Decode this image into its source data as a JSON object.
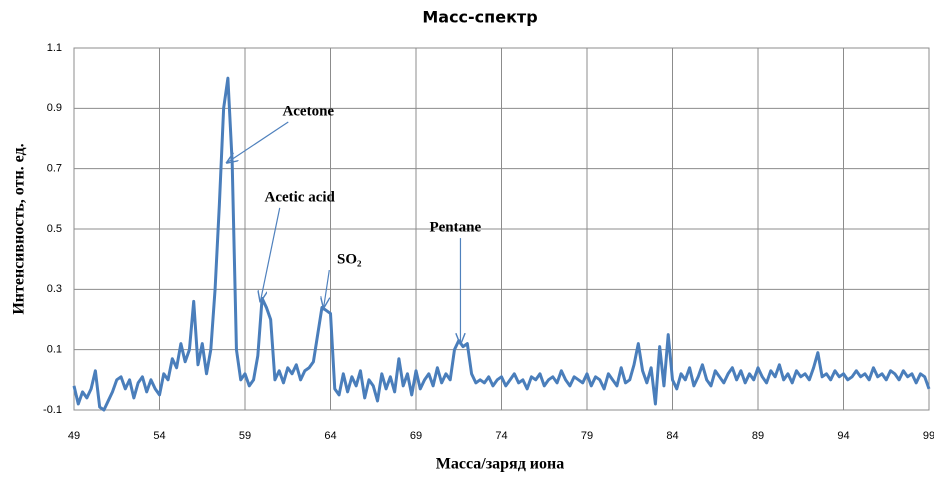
{
  "chart_data": {
    "type": "line",
    "title": "Масс-спектр",
    "xlabel": "Масса/заряд иона",
    "ylabel": "Интенсивность, отн. ед.",
    "xlim": [
      49,
      99
    ],
    "ylim": [
      -0.1,
      1.1
    ],
    "xticks": [
      49,
      54,
      59,
      64,
      69,
      74,
      79,
      84,
      89,
      94,
      99
    ],
    "yticks": [
      -0.1,
      0.1,
      0.3,
      0.5,
      0.7,
      0.9,
      1.1
    ],
    "grid": true,
    "x": [
      49,
      49.25,
      49.5,
      49.75,
      50,
      50.25,
      50.5,
      50.75,
      51,
      51.25,
      51.5,
      51.75,
      52,
      52.25,
      52.5,
      52.75,
      53,
      53.25,
      53.5,
      53.75,
      54,
      54.25,
      54.5,
      54.75,
      55,
      55.25,
      55.5,
      55.75,
      56,
      56.25,
      56.5,
      56.75,
      57,
      57.25,
      57.5,
      57.75,
      58,
      58.25,
      58.5,
      58.75,
      59,
      59.25,
      59.5,
      59.75,
      60,
      60.25,
      60.5,
      60.75,
      61,
      61.25,
      61.5,
      61.75,
      62,
      62.25,
      62.5,
      62.75,
      63,
      63.25,
      63.5,
      63.75,
      64,
      64.25,
      64.5,
      64.75,
      65,
      65.25,
      65.5,
      65.75,
      66,
      66.25,
      66.5,
      66.75,
      67,
      67.25,
      67.5,
      67.75,
      68,
      68.25,
      68.5,
      68.75,
      69,
      69.25,
      69.5,
      69.75,
      70,
      70.25,
      70.5,
      70.75,
      71,
      71.25,
      71.5,
      71.75,
      72,
      72.25,
      72.5,
      72.75,
      73,
      73.25,
      73.5,
      73.75,
      74,
      74.25,
      74.5,
      74.75,
      75,
      75.25,
      75.5,
      75.75,
      76,
      76.25,
      76.5,
      76.75,
      77,
      77.25,
      77.5,
      77.75,
      78,
      78.25,
      78.5,
      78.75,
      79,
      79.25,
      79.5,
      79.75,
      80,
      80.25,
      80.5,
      80.75,
      81,
      81.25,
      81.5,
      81.75,
      82,
      82.25,
      82.5,
      82.75,
      83,
      83.25,
      83.5,
      83.75,
      84,
      84.25,
      84.5,
      84.75,
      85,
      85.25,
      85.5,
      85.75,
      86,
      86.25,
      86.5,
      86.75,
      87,
      87.25,
      87.5,
      87.75,
      88,
      88.25,
      88.5,
      88.75,
      89,
      89.25,
      89.5,
      89.75,
      90,
      90.25,
      90.5,
      90.75,
      91,
      91.25,
      91.5,
      91.75,
      92,
      92.25,
      92.5,
      92.75,
      93,
      93.25,
      93.5,
      93.75,
      94,
      94.25,
      94.5,
      94.75,
      95,
      95.25,
      95.5,
      95.75,
      96,
      96.25,
      96.5,
      96.75,
      97,
      97.25,
      97.5,
      97.75,
      98,
      98.25,
      98.5,
      98.75,
      99
    ],
    "series": [
      {
        "name": "spectrum",
        "color": "#4a7ebb",
        "values": [
          -0.02,
          -0.08,
          -0.04,
          -0.06,
          -0.03,
          0.03,
          -0.09,
          -0.1,
          -0.07,
          -0.04,
          0,
          0.01,
          -0.03,
          0,
          -0.06,
          -0.01,
          0.01,
          -0.04,
          0,
          -0.03,
          -0.05,
          0.02,
          0,
          0.07,
          0.04,
          0.12,
          0.06,
          0.1,
          0.26,
          0.05,
          0.12,
          0.02,
          0.1,
          0.3,
          0.58,
          0.9,
          1.0,
          0.72,
          0.1,
          0,
          0.02,
          -0.02,
          0,
          0.08,
          0.27,
          0.24,
          0.2,
          0,
          0.03,
          -0.01,
          0.04,
          0.02,
          0.05,
          0,
          0.03,
          0.04,
          0.06,
          0.15,
          0.24,
          0.23,
          0.22,
          -0.03,
          -0.05,
          0.02,
          -0.04,
          0.01,
          -0.02,
          0.03,
          -0.06,
          0,
          -0.02,
          -0.07,
          0.02,
          -0.03,
          0.01,
          -0.04,
          0.07,
          -0.02,
          0.02,
          -0.05,
          0.03,
          -0.03,
          0,
          0.02,
          -0.02,
          0.04,
          -0.01,
          0.02,
          0,
          0.1,
          0.13,
          0.11,
          0.12,
          0.02,
          -0.01,
          0,
          -0.01,
          0.01,
          -0.02,
          0,
          0.01,
          -0.02,
          0,
          0.02,
          -0.01,
          0,
          -0.03,
          0.01,
          0,
          0.02,
          -0.02,
          0,
          0.01,
          -0.01,
          0.03,
          0,
          -0.02,
          0.01,
          0,
          -0.01,
          0.02,
          -0.02,
          0.01,
          0,
          -0.03,
          0.02,
          0,
          -0.02,
          0.04,
          -0.01,
          0,
          0.05,
          0.12,
          0.03,
          -0.01,
          0.04,
          -0.08,
          0.11,
          -0.02,
          0.15,
          0,
          -0.03,
          0.02,
          0,
          0.04,
          -0.02,
          0.01,
          0.05,
          0,
          -0.02,
          0.03,
          0.01,
          -0.01,
          0.02,
          0.04,
          0,
          0.03,
          -0.01,
          0.02,
          0,
          0.04,
          0.01,
          -0.01,
          0.03,
          0.01,
          0.05,
          0,
          0.02,
          -0.01,
          0.03,
          0.01,
          0.02,
          0,
          0.04,
          0.09,
          0.01,
          0.02,
          0,
          0.03,
          0.01,
          0.02,
          0,
          0.01,
          0.03,
          0.01,
          0.02,
          0,
          0.04,
          0.01,
          0.02,
          0,
          0.03,
          0.02,
          0,
          0.03,
          0.01,
          0.02,
          -0.01,
          0.02,
          0.01,
          -0.03
        ]
      }
    ],
    "annotations": [
      {
        "text": "Acetone",
        "xy": [
          57.95,
          0.72
        ],
        "xytext": [
          62.7,
          0.888
        ]
      },
      {
        "text": "Acetic acid",
        "xy": [
          59.9,
          0.26
        ],
        "xytext": [
          62.2,
          0.603
        ]
      },
      {
        "text": "SO₂",
        "xy": [
          63.6,
          0.24
        ],
        "xytext": [
          65.1,
          0.397
        ]
      },
      {
        "text": "Pentane",
        "xy": [
          71.6,
          0.12
        ],
        "xytext": [
          71.3,
          0.503
        ]
      }
    ]
  }
}
